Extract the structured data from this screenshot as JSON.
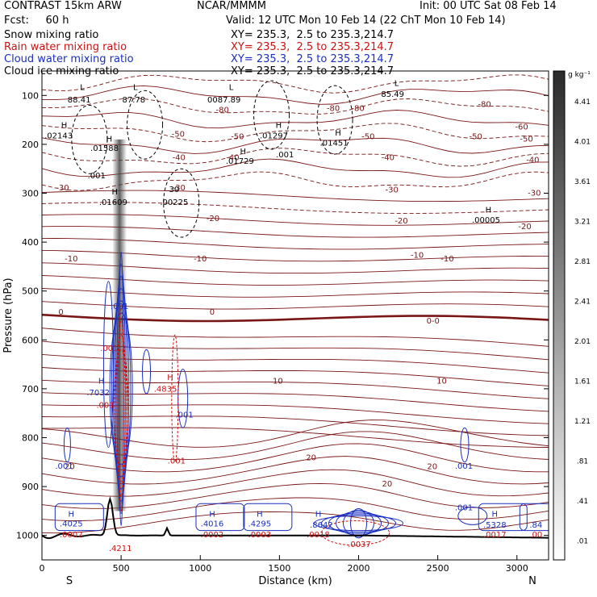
{
  "header": {
    "model": "CONTRAST 15km ARW",
    "center": "NCAR/MMMM",
    "init": "Init: 00 UTC Sat 08 Feb 14",
    "fcst": "Fcst:     60 h",
    "valid": "Valid: 12 UTC Mon 10 Feb 14 (22 ChT Mon 10 Feb 14)",
    "fields": [
      {
        "name": "Snow mixing ratio",
        "xy": "XY= 235.3,  2.5 to 235.3,214.7",
        "color": "#000000"
      },
      {
        "name": "Rain water mixing ratio",
        "xy": "XY= 235.3,  2.5 to 235.3,214.7",
        "color": "#cc1111"
      },
      {
        "name": "Cloud water mixing ratio",
        "xy": "XY= 235.3,  2.5 to 235.3,214.7",
        "color": "#1a2fc0"
      },
      {
        "name": "Cloud ice mixing ratio",
        "xy": "XY= 235.3,  2.5 to 235.3,214.7",
        "color": "#000000"
      }
    ]
  },
  "chart_data": {
    "type": "contour-cross-section",
    "xlabel": "Distance (km)",
    "ylabel": "Pressure (hPa)",
    "xlim": [
      0,
      3200
    ],
    "ylim": [
      1050,
      50
    ],
    "x_ticks": [
      0,
      500,
      1000,
      1500,
      2000,
      2500,
      3000
    ],
    "y_ticks": [
      100,
      200,
      300,
      400,
      500,
      600,
      700,
      800,
      900,
      1000
    ],
    "x_end_labels": {
      "left": "S",
      "right": "N"
    },
    "colorbar": {
      "units": "g kg⁻¹",
      "values": [
        4.41,
        4.01,
        3.61,
        3.21,
        2.81,
        2.41,
        2.01,
        1.61,
        1.21,
        0.81,
        0.41,
        0.01
      ],
      "labels": [
        "4.41",
        "4.01",
        "3.61",
        "3.21",
        "2.81",
        "2.41",
        "2.01",
        "1.61",
        "1.21",
        ".81",
        ".41",
        ".01"
      ]
    },
    "temperature_labels": [
      {
        "text": "-80",
        "x": 1140,
        "p": 128
      },
      {
        "text": "-80",
        "x": 1840,
        "p": 125
      },
      {
        "text": "-80",
        "x": 1995,
        "p": 125
      },
      {
        "text": "-80",
        "x": 2795,
        "p": 117
      },
      {
        "text": "-60",
        "x": 3030,
        "p": 163
      },
      {
        "text": "-50",
        "x": 860,
        "p": 178
      },
      {
        "text": "-50",
        "x": 1235,
        "p": 183
      },
      {
        "text": "-50",
        "x": 2060,
        "p": 183
      },
      {
        "text": "-50",
        "x": 2740,
        "p": 183
      },
      {
        "text": "-50",
        "x": 3060,
        "p": 188
      },
      {
        "text": "-40",
        "x": 865,
        "p": 226
      },
      {
        "text": "-40",
        "x": 1205,
        "p": 226
      },
      {
        "text": "-40",
        "x": 2185,
        "p": 226
      },
      {
        "text": "-40",
        "x": 3100,
        "p": 231
      },
      {
        "text": "-30",
        "x": 130,
        "p": 288
      },
      {
        "text": "-30",
        "x": 865,
        "p": 288
      },
      {
        "text": "-30",
        "x": 2210,
        "p": 292
      },
      {
        "text": "-30",
        "x": 3110,
        "p": 298
      },
      {
        "text": "-20",
        "x": 1080,
        "p": 350
      },
      {
        "text": "-20",
        "x": 2270,
        "p": 355
      },
      {
        "text": "-20",
        "x": 3050,
        "p": 367
      },
      {
        "text": "-10",
        "x": 185,
        "p": 433
      },
      {
        "text": "-10",
        "x": 1000,
        "p": 433
      },
      {
        "text": "-10",
        "x": 2370,
        "p": 425
      },
      {
        "text": "-10",
        "x": 2560,
        "p": 433
      },
      {
        "text": "0",
        "x": 120,
        "p": 542
      },
      {
        "text": "0",
        "x": 1075,
        "p": 542
      },
      {
        "text": "0-0",
        "x": 2470,
        "p": 560
      },
      {
        "text": "10",
        "x": 1490,
        "p": 683
      },
      {
        "text": "10",
        "x": 2525,
        "p": 683
      },
      {
        "text": "20",
        "x": 175,
        "p": 858
      },
      {
        "text": "20",
        "x": 1700,
        "p": 840
      },
      {
        "text": "20",
        "x": 2180,
        "p": 893
      },
      {
        "text": "20",
        "x": 2465,
        "p": 858
      }
    ],
    "annotations": [
      {
        "text": "L",
        "x": 255,
        "p": 82,
        "color": "#000000"
      },
      {
        "text": "88.41",
        "x": 235,
        "p": 108,
        "color": "#000000"
      },
      {
        "text": "L",
        "x": 590,
        "p": 82,
        "color": "#000000"
      },
      {
        "text": "87.78",
        "x": 580,
        "p": 108,
        "color": "#000000"
      },
      {
        "text": "L",
        "x": 1195,
        "p": 82,
        "color": "#000000"
      },
      {
        "text": "0087.89",
        "x": 1150,
        "p": 108,
        "color": "#000000"
      },
      {
        "text": "L",
        "x": 2240,
        "p": 74,
        "color": "#000000"
      },
      {
        "text": "85.49",
        "x": 2215,
        "p": 96,
        "color": "#000000"
      },
      {
        "text": "H",
        "x": 140,
        "p": 160,
        "color": "#000000"
      },
      {
        "text": ".02143",
        "x": 105,
        "p": 181,
        "color": "#000000"
      },
      {
        "text": "H",
        "x": 425,
        "p": 188,
        "color": "#000000"
      },
      {
        "text": ".01588",
        "x": 395,
        "p": 207,
        "color": "#000000"
      },
      {
        "text": "H",
        "x": 1495,
        "p": 160,
        "color": "#000000"
      },
      {
        "text": ".01297",
        "x": 1465,
        "p": 181,
        "color": "#000000"
      },
      {
        "text": "H",
        "x": 1870,
        "p": 175,
        "color": "#000000"
      },
      {
        "text": ".01451",
        "x": 1845,
        "p": 196,
        "color": "#000000"
      },
      {
        "text": "H",
        "x": 1270,
        "p": 213,
        "color": "#000000"
      },
      {
        "text": ".01729",
        "x": 1250,
        "p": 233,
        "color": "#000000"
      },
      {
        "text": ".001",
        "x": 1535,
        "p": 220,
        "color": "#000000"
      },
      {
        "text": ".001",
        "x": 345,
        "p": 263,
        "color": "#000000"
      },
      {
        "text": "H",
        "x": 460,
        "p": 296,
        "color": "#000000"
      },
      {
        "text": ".01609",
        "x": 450,
        "p": 317,
        "color": "#000000"
      },
      {
        "text": "30",
        "x": 835,
        "p": 291,
        "color": "#000000"
      },
      {
        "text": ".00225",
        "x": 835,
        "p": 317,
        "color": "#000000"
      },
      {
        "text": "H",
        "x": 2820,
        "p": 333,
        "color": "#000000"
      },
      {
        "text": ".00005",
        "x": 2805,
        "p": 354,
        "color": "#000000"
      },
      {
        "text": ".001",
        "x": 490,
        "p": 530,
        "color": "#1a2fc0"
      },
      {
        "text": ".001",
        "x": 425,
        "p": 616,
        "color": "#cc1111"
      },
      {
        "text": "H",
        "x": 375,
        "p": 683,
        "color": "#1a2fc0"
      },
      {
        "text": ".7032",
        "x": 355,
        "p": 707,
        "color": "#1a2fc0"
      },
      {
        "text": ".001",
        "x": 400,
        "p": 732,
        "color": "#cc1111"
      },
      {
        "text": "H",
        "x": 810,
        "p": 675,
        "color": "#cc1111"
      },
      {
        "text": ".4835",
        "x": 780,
        "p": 699,
        "color": "#cc1111"
      },
      {
        "text": ".001",
        "x": 900,
        "p": 752,
        "color": "#1a2fc0"
      },
      {
        "text": ".001",
        "x": 850,
        "p": 846,
        "color": "#cc1111"
      },
      {
        "text": ".001",
        "x": 140,
        "p": 857,
        "color": "#1a2fc0"
      },
      {
        "text": ".001",
        "x": 2665,
        "p": 857,
        "color": "#1a2fc0"
      },
      {
        "text": ".001",
        "x": 2665,
        "p": 942,
        "color": "#1a2fc0"
      },
      {
        "text": "H",
        "x": 185,
        "p": 955,
        "color": "#1a2fc0"
      },
      {
        "text": ".4025",
        "x": 185,
        "p": 975,
        "color": "#1a2fc0"
      },
      {
        "text": ".0002",
        "x": 185,
        "p": 997,
        "color": "#cc1111"
      },
      {
        "text": "H",
        "x": 1075,
        "p": 955,
        "color": "#1a2fc0"
      },
      {
        "text": ".4016",
        "x": 1075,
        "p": 975,
        "color": "#1a2fc0"
      },
      {
        "text": ".0002",
        "x": 1075,
        "p": 997,
        "color": "#cc1111"
      },
      {
        "text": "H",
        "x": 1375,
        "p": 955,
        "color": "#1a2fc0"
      },
      {
        "text": ".4295",
        "x": 1375,
        "p": 975,
        "color": "#1a2fc0"
      },
      {
        "text": ".0003",
        "x": 1375,
        "p": 997,
        "color": "#cc1111"
      },
      {
        "text": "H",
        "x": 1745,
        "p": 955,
        "color": "#1a2fc0"
      },
      {
        "text": ".8642",
        "x": 1765,
        "p": 977,
        "color": "#1a2fc0"
      },
      {
        "text": ".0018",
        "x": 1745,
        "p": 997,
        "color": "#cc1111"
      },
      {
        "text": ".0037",
        "x": 2005,
        "p": 1017,
        "color": "#cc1111"
      },
      {
        "text": "H",
        "x": 2860,
        "p": 955,
        "color": "#1a2fc0"
      },
      {
        "text": ".5328",
        "x": 2860,
        "p": 977,
        "color": "#1a2fc0"
      },
      {
        "text": ".0017",
        "x": 2860,
        "p": 997,
        "color": "#cc1111"
      },
      {
        "text": ".84",
        "x": 3120,
        "p": 977,
        "color": "#1a2fc0"
      },
      {
        "text": ".00",
        "x": 3120,
        "p": 997,
        "color": "#cc1111"
      },
      {
        "text": ".4211",
        "x": 495,
        "p": 1025,
        "color": "#cc1111"
      }
    ]
  },
  "colors": {
    "temperature": "#7a1515",
    "snow": "#000000",
    "rain": "#cc1111",
    "cloud_water": "#1a2fc0",
    "cloud_ice": "#000000",
    "terrain": "#000000"
  }
}
